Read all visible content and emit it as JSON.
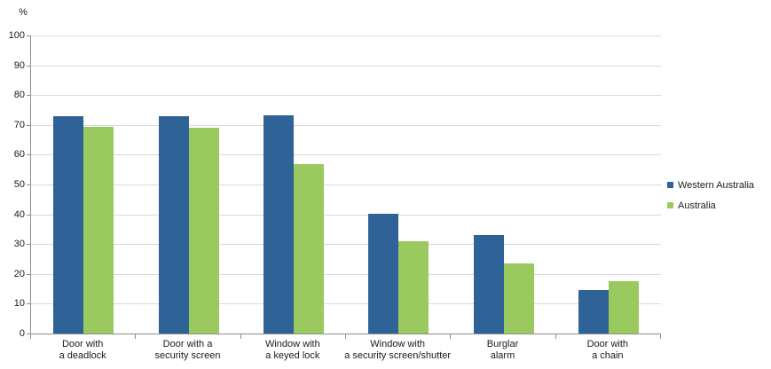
{
  "chart_data": {
    "type": "bar",
    "title": "",
    "xlabel": "",
    "ylabel": "%",
    "y_unit": "%",
    "ylim": [
      0,
      100
    ],
    "yticks": [
      0,
      10,
      20,
      30,
      40,
      50,
      60,
      70,
      80,
      90,
      100
    ],
    "grid": "horizontal",
    "legend_position": "right",
    "categories": [
      "Door with a deadlock",
      "Door with a security screen",
      "Window with a keyed lock",
      "Window with a security screen/shutter",
      "Burglar alarm",
      "Door with a chain"
    ],
    "category_lines": [
      [
        "Door with",
        "a deadlock"
      ],
      [
        "Door with a",
        "security screen"
      ],
      [
        "Window with",
        "a keyed lock"
      ],
      [
        "Window with",
        "a security screen/shutter"
      ],
      [
        "Burglar",
        "alarm"
      ],
      [
        "Door with",
        "a chain"
      ]
    ],
    "series": [
      {
        "name": "Western Australia",
        "color": "#2F6296",
        "values": [
          72.9,
          73.0,
          73.3,
          40.2,
          33.1,
          14.6
        ]
      },
      {
        "name": "Australia",
        "color": "#9ACA5F",
        "values": [
          69.2,
          69.0,
          56.7,
          31.0,
          23.4,
          17.6
        ]
      }
    ]
  },
  "colors": {
    "western_australia_bar": "#2F6296",
    "australia_bar": "#9ACA5F",
    "gridline": "#D9D9D9",
    "axis_line": "#8E8E8E",
    "text": "#1A1A1A",
    "background": "#FFFFFF"
  }
}
